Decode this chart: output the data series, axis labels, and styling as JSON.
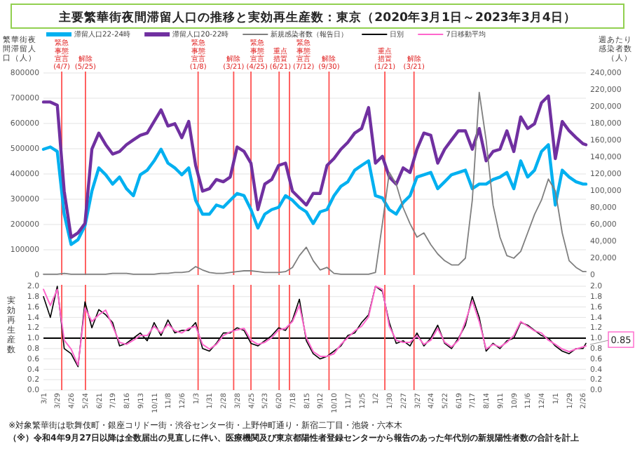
{
  "chart_data": [
    {
      "type": "line",
      "title": "主要繁華街夜間滞留人口の推移と実効再生産数：東京（2020年3月1日～2023年3月4日）",
      "ylabel": "繁華街夜間滞留人口（人）",
      "y2label": "週あたり感染者数（人）",
      "x": [
        "2020-03-01",
        "2020-03-15",
        "2020-03-29",
        "2020-04-12",
        "2020-04-26",
        "2020-05-10",
        "2020-05-24",
        "2020-06-07",
        "2020-06-21",
        "2020-07-05",
        "2020-07-19",
        "2020-08-02",
        "2020-08-16",
        "2020-08-30",
        "2020-09-13",
        "2020-09-27",
        "2020-10-11",
        "2020-10-25",
        "2020-11-08",
        "2020-11-22",
        "2020-12-06",
        "2020-12-20",
        "2021-01-03",
        "2021-01-17",
        "2021-01-31",
        "2021-02-14",
        "2021-02-28",
        "2021-03-14",
        "2021-03-28",
        "2021-04-11",
        "2021-04-25",
        "2021-05-09",
        "2021-05-23",
        "2021-06-06",
        "2021-06-20",
        "2021-07-04",
        "2021-07-18",
        "2021-08-01",
        "2021-08-15",
        "2021-08-29",
        "2021-09-12",
        "2021-09-26",
        "2021-10-10",
        "2021-10-24",
        "2021-11-07",
        "2021-11-21",
        "2021-12-05",
        "2021-12-19",
        "2022-01-02",
        "2022-01-16",
        "2022-01-30",
        "2022-02-13",
        "2022-02-27",
        "2022-03-13",
        "2022-03-27",
        "2022-04-10",
        "2022-04-24",
        "2022-05-08",
        "2022-05-22",
        "2022-06-05",
        "2022-06-19",
        "2022-07-03",
        "2022-07-17",
        "2022-07-31",
        "2022-08-14",
        "2022-08-28",
        "2022-09-11",
        "2022-09-25",
        "2022-10-09",
        "2022-10-23",
        "2022-11-06",
        "2022-11-20",
        "2022-12-04",
        "2022-12-18",
        "2023-01-01",
        "2023-01-15",
        "2023-01-29",
        "2023-02-12",
        "2023-02-26",
        "2023-03-04"
      ],
      "series": [
        {
          "name": "滞留人口22-24時",
          "color": "#00b0f0",
          "values": [
            498000,
            507000,
            489000,
            241000,
            121000,
            140000,
            195000,
            332000,
            424000,
            397000,
            360000,
            388000,
            342000,
            314000,
            397000,
            415000,
            452000,
            498000,
            443000,
            424000,
            397000,
            424000,
            296000,
            241000,
            241000,
            277000,
            268000,
            296000,
            323000,
            314000,
            259000,
            186000,
            241000,
            259000,
            268000,
            314000,
            296000,
            268000,
            250000,
            204000,
            250000,
            259000,
            314000,
            351000,
            369000,
            415000,
            434000,
            452000,
            314000,
            305000,
            259000,
            241000,
            287000,
            314000,
            388000,
            397000,
            406000,
            342000,
            369000,
            397000,
            406000,
            415000,
            342000,
            360000,
            360000,
            378000,
            388000,
            406000,
            342000,
            452000,
            388000,
            415000,
            489000,
            516000,
            277000,
            415000,
            388000,
            369000,
            360000,
            360000
          ]
        },
        {
          "name": "滞留人口20-22時",
          "color": "#7030a0",
          "values": [
            685000,
            685000,
            672000,
            332000,
            149000,
            167000,
            204000,
            498000,
            562000,
            516000,
            479000,
            489000,
            516000,
            535000,
            553000,
            562000,
            608000,
            654000,
            590000,
            599000,
            544000,
            608000,
            434000,
            332000,
            342000,
            378000,
            369000,
            388000,
            507000,
            489000,
            443000,
            259000,
            360000,
            378000,
            434000,
            443000,
            332000,
            305000,
            277000,
            323000,
            323000,
            434000,
            461000,
            498000,
            525000,
            562000,
            580000,
            663000,
            443000,
            470000,
            388000,
            360000,
            424000,
            406000,
            498000,
            562000,
            553000,
            443000,
            498000,
            535000,
            571000,
            571000,
            498000,
            580000,
            452000,
            489000,
            498000,
            571000,
            489000,
            626000,
            580000,
            599000,
            682000,
            709000,
            461000,
            608000,
            571000,
            544000,
            520000,
            516000
          ]
        },
        {
          "name": "新規感染者数（報告日）",
          "color": "#7f7f7f",
          "axis": "y2",
          "values": [
            1000,
            1000,
            1000,
            2000,
            1000,
            1000,
            1000,
            1000,
            1000,
            1000,
            2000,
            2000,
            2000,
            1000,
            1000,
            1000,
            1000,
            2000,
            2000,
            3000,
            3000,
            4000,
            10000,
            6000,
            3000,
            2000,
            2000,
            3000,
            4000,
            5000,
            5000,
            4000,
            3000,
            3000,
            3000,
            4000,
            9000,
            23000,
            33000,
            17000,
            6000,
            9000,
            2000,
            1000,
            1000,
            1000,
            1000,
            1000,
            3000,
            61000,
            122000,
            108000,
            80000,
            61000,
            45000,
            50000,
            36000,
            25000,
            17000,
            12000,
            12000,
            20000,
            89000,
            217000,
            160000,
            83000,
            45000,
            23000,
            20000,
            28000,
            50000,
            72000,
            89000,
            114000,
            100000,
            50000,
            17000,
            9000,
            4000,
            4000
          ]
        }
      ],
      "xlim": [
        "2020-03-01",
        "2023-03-04"
      ],
      "ylim": [
        0,
        800000
      ],
      "yticks": [
        0,
        100000,
        200000,
        300000,
        400000,
        500000,
        600000,
        700000,
        800000
      ],
      "y2lim": [
        0,
        240000
      ],
      "y2ticks": [
        0,
        {
          "value": 20000,
          "label": "20,000"
        },
        {
          "value": 40000,
          "label": "40,000"
        },
        {
          "value": 60000,
          "label": "60,000"
        },
        {
          "value": 80000,
          "label": "80,000"
        },
        {
          "value": 100000,
          "label": "100,000"
        },
        {
          "value": 120000,
          "label": "120,000"
        },
        {
          "value": 140000,
          "label": "140,000"
        },
        {
          "value": 160000,
          "label": "160,000"
        },
        {
          "value": 180000,
          "label": "180,000"
        },
        {
          "value": 200000,
          "label": "200,000"
        },
        {
          "value": 220000,
          "label": "220,000"
        },
        {
          "value": 240000,
          "label": "240,000"
        }
      ],
      "tick_labels": "y",
      "grid": "y",
      "legend": "top",
      "ref_lines": [
        {
          "axis": "x",
          "value": "2020-04-07",
          "label": "緊急事態宣言(4/7)",
          "color": "#ff5050"
        },
        {
          "axis": "x",
          "value": "2020-05-25",
          "label": "解除(5/25)",
          "color": "#ff5050"
        },
        {
          "axis": "x",
          "value": "2021-01-08",
          "label": "緊急事態宣言(1/8)",
          "color": "#ff5050"
        },
        {
          "axis": "x",
          "value": "2021-03-21",
          "label": "解除(3/21)",
          "color": "#ff5050"
        },
        {
          "axis": "x",
          "value": "2021-04-25",
          "label": "緊急事態宣言(4/25)",
          "color": "#ff5050"
        },
        {
          "axis": "x",
          "value": "2021-06-21",
          "label": "重点措置(6/21)",
          "color": "#ff5050"
        },
        {
          "axis": "x",
          "value": "2021-07-12",
          "label": "緊急事態宣言(7/12)",
          "color": "#ff5050"
        },
        {
          "axis": "x",
          "value": "2021-09-30",
          "label": "解除(9/30)",
          "color": "#ff5050"
        },
        {
          "axis": "x",
          "value": "2022-01-21",
          "label": "重点措置(1/21)",
          "color": "#ff5050"
        },
        {
          "axis": "x",
          "value": "2022-03-21",
          "label": "解除(3/21)",
          "color": "#ff5050"
        }
      ]
    },
    {
      "type": "line",
      "ylabel": "実効再生産数",
      "x": [
        "2020-03-01",
        "2020-03-15",
        "2020-03-29",
        "2020-04-12",
        "2020-04-26",
        "2020-05-10",
        "2020-05-24",
        "2020-06-07",
        "2020-06-21",
        "2020-07-05",
        "2020-07-19",
        "2020-08-02",
        "2020-08-16",
        "2020-08-30",
        "2020-09-13",
        "2020-09-27",
        "2020-10-11",
        "2020-10-25",
        "2020-11-08",
        "2020-11-22",
        "2020-12-06",
        "2020-12-20",
        "2021-01-03",
        "2021-01-17",
        "2021-01-31",
        "2021-02-14",
        "2021-02-28",
        "2021-03-14",
        "2021-03-28",
        "2021-04-11",
        "2021-04-25",
        "2021-05-09",
        "2021-05-23",
        "2021-06-06",
        "2021-06-20",
        "2021-07-04",
        "2021-07-18",
        "2021-08-01",
        "2021-08-15",
        "2021-08-29",
        "2021-09-12",
        "2021-09-26",
        "2021-10-10",
        "2021-10-24",
        "2021-11-07",
        "2021-11-21",
        "2021-12-05",
        "2021-12-19",
        "2022-01-02",
        "2022-01-16",
        "2022-01-30",
        "2022-02-13",
        "2022-02-27",
        "2022-03-13",
        "2022-03-27",
        "2022-04-10",
        "2022-04-24",
        "2022-05-08",
        "2022-05-22",
        "2022-06-05",
        "2022-06-19",
        "2022-07-03",
        "2022-07-17",
        "2022-07-31",
        "2022-08-14",
        "2022-08-28",
        "2022-09-11",
        "2022-09-25",
        "2022-10-09",
        "2022-10-23",
        "2022-11-06",
        "2022-11-20",
        "2022-12-04",
        "2022-12-18",
        "2023-01-01",
        "2023-01-15",
        "2023-01-29",
        "2023-02-12",
        "2023-02-26",
        "2023-03-04"
      ],
      "series": [
        {
          "name": "日別",
          "color": "#000000",
          "values": [
            1.8,
            1.4,
            2.0,
            0.8,
            0.7,
            0.45,
            1.7,
            1.2,
            1.55,
            1.45,
            1.3,
            0.85,
            0.9,
            1.0,
            1.1,
            0.95,
            1.3,
            1.05,
            1.35,
            1.1,
            1.15,
            1.15,
            1.3,
            0.8,
            0.75,
            0.9,
            1.1,
            1.1,
            1.2,
            1.15,
            0.9,
            0.85,
            0.95,
            1.05,
            1.2,
            1.15,
            1.35,
            1.75,
            0.95,
            0.7,
            0.6,
            0.65,
            0.75,
            0.85,
            1.05,
            1.1,
            1.3,
            1.45,
            2.0,
            1.9,
            1.3,
            0.9,
            0.95,
            0.85,
            1.1,
            0.85,
            1.0,
            1.25,
            0.9,
            0.8,
            1.0,
            1.25,
            1.8,
            1.4,
            0.75,
            0.9,
            0.8,
            0.95,
            1.0,
            1.3,
            1.25,
            1.15,
            1.05,
            1.0,
            0.85,
            0.75,
            0.7,
            0.8,
            0.8,
            0.9
          ]
        },
        {
          "name": "7日移動平均",
          "color": "#ff66cc",
          "values": [
            1.94,
            1.63,
            1.94,
            0.96,
            0.79,
            0.48,
            1.58,
            1.32,
            1.45,
            1.54,
            1.23,
            0.92,
            0.88,
            0.96,
            1.05,
            1.05,
            1.23,
            1.1,
            1.27,
            1.14,
            1.1,
            1.19,
            1.23,
            0.88,
            0.79,
            0.88,
            1.05,
            1.12,
            1.16,
            1.19,
            0.96,
            0.88,
            0.92,
            1.01,
            1.16,
            1.19,
            1.32,
            1.63,
            1.01,
            0.74,
            0.65,
            0.65,
            0.7,
            0.88,
            1.01,
            1.14,
            1.23,
            1.41,
            2.0,
            1.94,
            1.23,
            0.96,
            0.92,
            0.92,
            1.05,
            0.88,
            0.96,
            1.19,
            0.92,
            0.83,
            0.96,
            1.32,
            1.72,
            1.32,
            0.79,
            0.88,
            0.83,
            0.92,
            1.05,
            1.32,
            1.23,
            1.14,
            1.1,
            0.96,
            0.88,
            0.79,
            0.74,
            0.79,
            0.83,
            0.85
          ]
        }
      ],
      "xlim": [
        "2020-03-01",
        "2023-03-04"
      ],
      "ylim": [
        0,
        2.0
      ],
      "xticks": [
        {
          "value": "2020-03-01",
          "label": "3/1"
        },
        {
          "value": "2020-03-29",
          "label": "3/29"
        },
        {
          "value": "2020-04-26",
          "label": "4/26"
        },
        {
          "value": "2020-05-24",
          "label": "5/24"
        },
        {
          "value": "2020-06-21",
          "label": "6/21"
        },
        {
          "value": "2020-07-19",
          "label": "7/19"
        },
        {
          "value": "2020-08-16",
          "label": "8/16"
        },
        {
          "value": "2020-09-13",
          "label": "9/13"
        },
        {
          "value": "2020-10-11",
          "label": "10/11"
        },
        {
          "value": "2020-11-08",
          "label": "11/8"
        },
        {
          "value": "2020-12-06",
          "label": "12/6"
        },
        {
          "value": "2021-01-03",
          "label": "1/3"
        },
        {
          "value": "2021-01-31",
          "label": "1/31"
        },
        {
          "value": "2021-02-28",
          "label": "2/28"
        },
        {
          "value": "2021-03-28",
          "label": "3/28"
        },
        {
          "value": "2021-04-25",
          "label": "4/25"
        },
        {
          "value": "2021-05-23",
          "label": "5/23"
        },
        {
          "value": "2021-06-20",
          "label": "6/20"
        },
        {
          "value": "2021-07-18",
          "label": "7/18"
        },
        {
          "value": "2021-08-15",
          "label": "8/15"
        },
        {
          "value": "2021-09-12",
          "label": "9/12"
        },
        {
          "value": "2021-10-10",
          "label": "10/10"
        },
        {
          "value": "2021-11-07",
          "label": "11/7"
        },
        {
          "value": "2021-12-05",
          "label": "12/5"
        },
        {
          "value": "2022-01-02",
          "label": "1/2"
        },
        {
          "value": "2022-01-30",
          "label": "1/30"
        },
        {
          "value": "2022-02-27",
          "label": "2/27"
        },
        {
          "value": "2022-03-27",
          "label": "3/27"
        },
        {
          "value": "2022-04-24",
          "label": "4/24"
        },
        {
          "value": "2022-05-22",
          "label": "5/22"
        },
        {
          "value": "2022-06-19",
          "label": "6/19"
        },
        {
          "value": "2022-07-17",
          "label": "7/17"
        },
        {
          "value": "2022-08-14",
          "label": "8/14"
        },
        {
          "value": "2022-09-11",
          "label": "9/11"
        },
        {
          "value": "2022-10-09",
          "label": "10/9"
        },
        {
          "value": "2022-11-06",
          "label": "11/6"
        },
        {
          "value": "2022-12-04",
          "label": "12/4"
        },
        {
          "value": "2023-01-01",
          "label": "1/1"
        },
        {
          "value": "2023-01-29",
          "label": "1/29"
        },
        {
          "value": "2023-02-26",
          "label": "2/26"
        }
      ],
      "yticks": [
        {
          "value": 0,
          "label": "0.0"
        },
        {
          "value": 0.2,
          "label": "0.2"
        },
        {
          "value": 0.4,
          "label": "0.4"
        },
        {
          "value": 0.6,
          "label": "0.6"
        },
        {
          "value": 0.8,
          "label": "0.8"
        },
        {
          "value": 1.0,
          "label": "1.0"
        },
        {
          "value": 1.2,
          "label": "1.2"
        },
        {
          "value": 1.4,
          "label": "1.4"
        },
        {
          "value": 1.6,
          "label": "1.6"
        },
        {
          "value": 1.8,
          "label": "1.8"
        },
        {
          "value": 2.0,
          "label": "2.0"
        }
      ],
      "y2lim": [
        0,
        2.0
      ],
      "y2ticks": [
        {
          "value": 0,
          "label": "0.0"
        },
        {
          "value": 0.2,
          "label": "0.2"
        },
        {
          "value": 0.4,
          "label": "0.4"
        },
        {
          "value": 0.6,
          "label": "0.6"
        },
        {
          "value": 0.8,
          "label": "0.8"
        },
        {
          "value": 1.0,
          "label": "1.0"
        },
        {
          "value": 1.2,
          "label": "1.2"
        },
        {
          "value": 1.4,
          "label": "1.4"
        },
        {
          "value": 1.6,
          "label": "1.6"
        },
        {
          "value": 1.8,
          "label": "1.8"
        },
        {
          "value": 2.0,
          "label": "2.0"
        }
      ],
      "grid": "y",
      "legend": "top",
      "ref_lines": [
        {
          "axis": "y",
          "value": 1.0,
          "color": "#000000"
        },
        {
          "axis": "x",
          "value": "2020-04-07",
          "color": "#ff5050"
        },
        {
          "axis": "x",
          "value": "2020-05-25",
          "color": "#ff5050"
        },
        {
          "axis": "x",
          "value": "2021-01-08",
          "color": "#ff5050"
        },
        {
          "axis": "x",
          "value": "2021-03-21",
          "color": "#ff5050"
        },
        {
          "axis": "x",
          "value": "2021-04-25",
          "color": "#ff5050"
        },
        {
          "axis": "x",
          "value": "2021-06-21",
          "color": "#ff5050"
        },
        {
          "axis": "x",
          "value": "2021-07-12",
          "color": "#ff5050"
        },
        {
          "axis": "x",
          "value": "2021-09-30",
          "color": "#ff5050"
        },
        {
          "axis": "x",
          "value": "2022-01-21",
          "color": "#ff5050"
        },
        {
          "axis": "x",
          "value": "2022-03-21",
          "color": "#ff5050"
        }
      ],
      "annotations": [
        {
          "text": "0.85",
          "x": "2023-03-04",
          "y": 0.85
        },
        "※対象繁華街は歌舞伎町・銀座コリドー街・渋谷センター街・上野仲町通り・新宿二丁目・池袋・六本木",
        "（※）令和4年9月27日以降は全数届出の見直しに伴い、医療機関及び東京都陽性者登録センターから報告のあった年代別の新規陽性者数の合計を計上"
      ]
    }
  ]
}
